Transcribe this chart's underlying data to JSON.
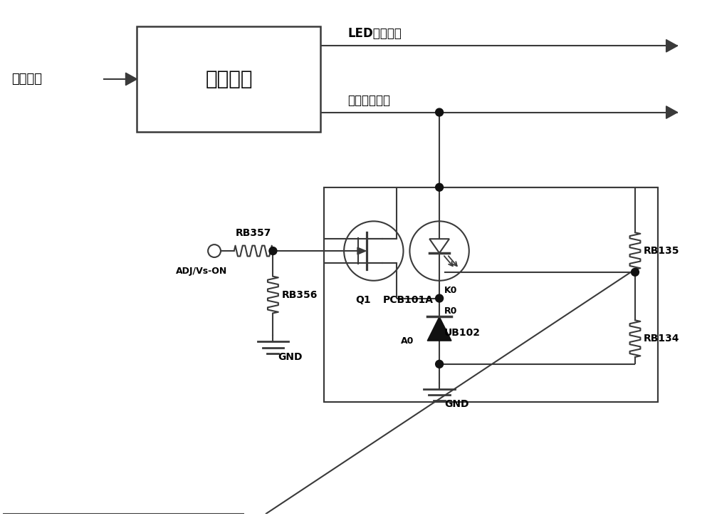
{
  "bg_color": "#ffffff",
  "line_color": "#3a3a3a",
  "text_color": "#000000",
  "fig_width": 10.0,
  "fig_height": 7.24,
  "labels": {
    "market_input": "市电输入",
    "power_circuit": "供电电路",
    "led_output": "LED供电输出",
    "main_output": "主板供电输出",
    "adj": "ADJ/Vs-ON",
    "rb357": "RB357",
    "rb356": "RB356",
    "q1": "Q1",
    "pcb101a": "PCB101A",
    "rb135": "RB135",
    "rb134": "RB134",
    "k0": "K0",
    "r0": "R0",
    "a0": "A0",
    "ub102": "UB102",
    "gnd1": "GND",
    "gnd2": "GND"
  }
}
